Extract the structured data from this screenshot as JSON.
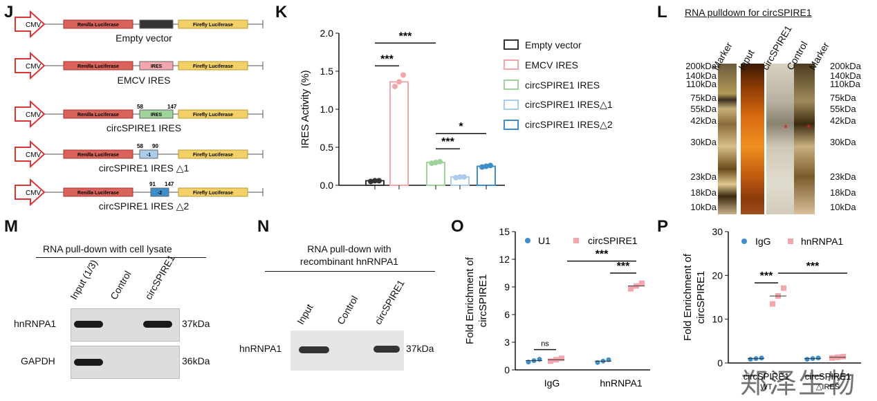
{
  "panels": {
    "J": "J",
    "K": "K",
    "L": "L",
    "M": "M",
    "N": "N",
    "O": "O",
    "P": "P"
  },
  "construct": {
    "cmv": "CMV",
    "renilla": "Renilla Luciferase",
    "firefly": "Firefly Luciferase",
    "ires": "IRES",
    "captions": [
      "Empty vector",
      "EMCV IRES",
      "circSPIRE1 IRES",
      "circSPIRE1 IRES △1",
      "circSPIRE1 IRES △2"
    ],
    "pos_58": "58",
    "pos_147": "147",
    "pos_90": "90",
    "pos_91": "91",
    "d1": "-1",
    "d2": "-2"
  },
  "colors": {
    "empty": "#333333",
    "emcv": "#f4a6ad",
    "circ": "#9ed39a",
    "d1": "#a9cdea",
    "d2": "#3d8ec9",
    "pinkdot": "#f4a6ad",
    "bluedot": "#3d8ec9"
  },
  "chart_data": [
    {
      "type": "bar",
      "title": "",
      "ylabel": "IRES Activity (%)",
      "ylim": [
        0,
        2.0
      ],
      "yticks": [
        "0.0",
        "0.5",
        "1.0",
        "1.5",
        "2.0"
      ],
      "categories": [
        "Empty vector",
        "EMCV IRES",
        "circSPIRE1 IRES",
        "circSPIRE1 IRES△1",
        "circSPIRE1 IRES△2"
      ],
      "values": [
        0.06,
        1.36,
        0.3,
        0.11,
        0.25
      ],
      "points": [
        [
          0.05,
          0.06,
          0.06
        ],
        [
          1.3,
          1.36,
          1.45
        ],
        [
          0.29,
          0.3,
          0.31
        ],
        [
          0.1,
          0.11,
          0.11
        ],
        [
          0.24,
          0.25,
          0.26
        ]
      ],
      "annotations": [
        "***",
        "***",
        "***",
        "*"
      ]
    },
    {
      "type": "scatter",
      "ylabel": "Fold Enrichment of circSPIRE1",
      "ylim": [
        0,
        15
      ],
      "yticks": [
        "0",
        "3",
        "6",
        "9",
        "12",
        "15"
      ],
      "categories": [
        "IgG",
        "hnRNPA1"
      ],
      "series": [
        {
          "name": "U1",
          "values": [
            1.0,
            0.95
          ]
        },
        {
          "name": "circSPIRE1",
          "values": [
            1.1,
            9.1
          ]
        }
      ],
      "annotations": [
        "ns",
        "***",
        "***"
      ]
    },
    {
      "type": "scatter",
      "ylabel": "Fold Enrichment of circSPIRE1",
      "ylim": [
        0,
        30
      ],
      "yticks": [
        "0",
        "10",
        "20",
        "30"
      ],
      "categories": [
        "circSPIRE1 WT",
        "circSPIRE1 △IRES"
      ],
      "series": [
        {
          "name": "IgG",
          "values": [
            1.0,
            1.0
          ]
        },
        {
          "name": "hnRNPA1",
          "values": [
            15.3,
            1.3
          ]
        }
      ],
      "annotations": [
        "***",
        "***"
      ]
    }
  ],
  "legendK": [
    "Empty vector",
    "EMCV IRES",
    "circSPIRE1 IRES",
    "circSPIRE1 IRES△1",
    "circSPIRE1 IRES△2"
  ],
  "L": {
    "title": "RNA pulldown for circSPIRE1",
    "lanes": [
      "Marker",
      "Input",
      "circSPIRE1",
      "Control",
      "Marker"
    ],
    "sizes": [
      "200kDa",
      "140kDa",
      "110kDa",
      "75kDa",
      "55kDa",
      "42kDa",
      "30kDa",
      "23kDa",
      "18kDa",
      "10kDa"
    ],
    "star": "*"
  },
  "M": {
    "title": "RNA pull-down with cell lysate",
    "lanes": [
      "Input (1/3)",
      "Control",
      "circSPIRE1"
    ],
    "rows": [
      "hnRNPA1",
      "GAPDH"
    ],
    "sizes": [
      "37kDa",
      "36kDa"
    ]
  },
  "N": {
    "title1": "RNA pull-down with",
    "title2": "recombinant hnRNPA1",
    "lanes": [
      "Input",
      "Control",
      "circSPIRE1"
    ],
    "row": "hnRNPA1",
    "size": "37kDa"
  },
  "O": {
    "ytitle1": "Fold Enrichment of",
    "ytitle2": "circSPIRE1",
    "x1": "IgG",
    "x2": "hnRNPA1",
    "leg1": "U1",
    "leg2": "circSPIRE1",
    "ns": "ns",
    "sig": "***"
  },
  "P": {
    "ytitle1": "Fold Enrichment of",
    "ytitle2": "circSPIRE1",
    "x1a": "circSPIRE1",
    "x1b": "WT",
    "x2a": "circSPIRE1",
    "x2b": "△IRES",
    "leg1": "IgG",
    "leg2": "hnRNPA1",
    "sig": "***"
  },
  "watermark": "郑泽生物"
}
